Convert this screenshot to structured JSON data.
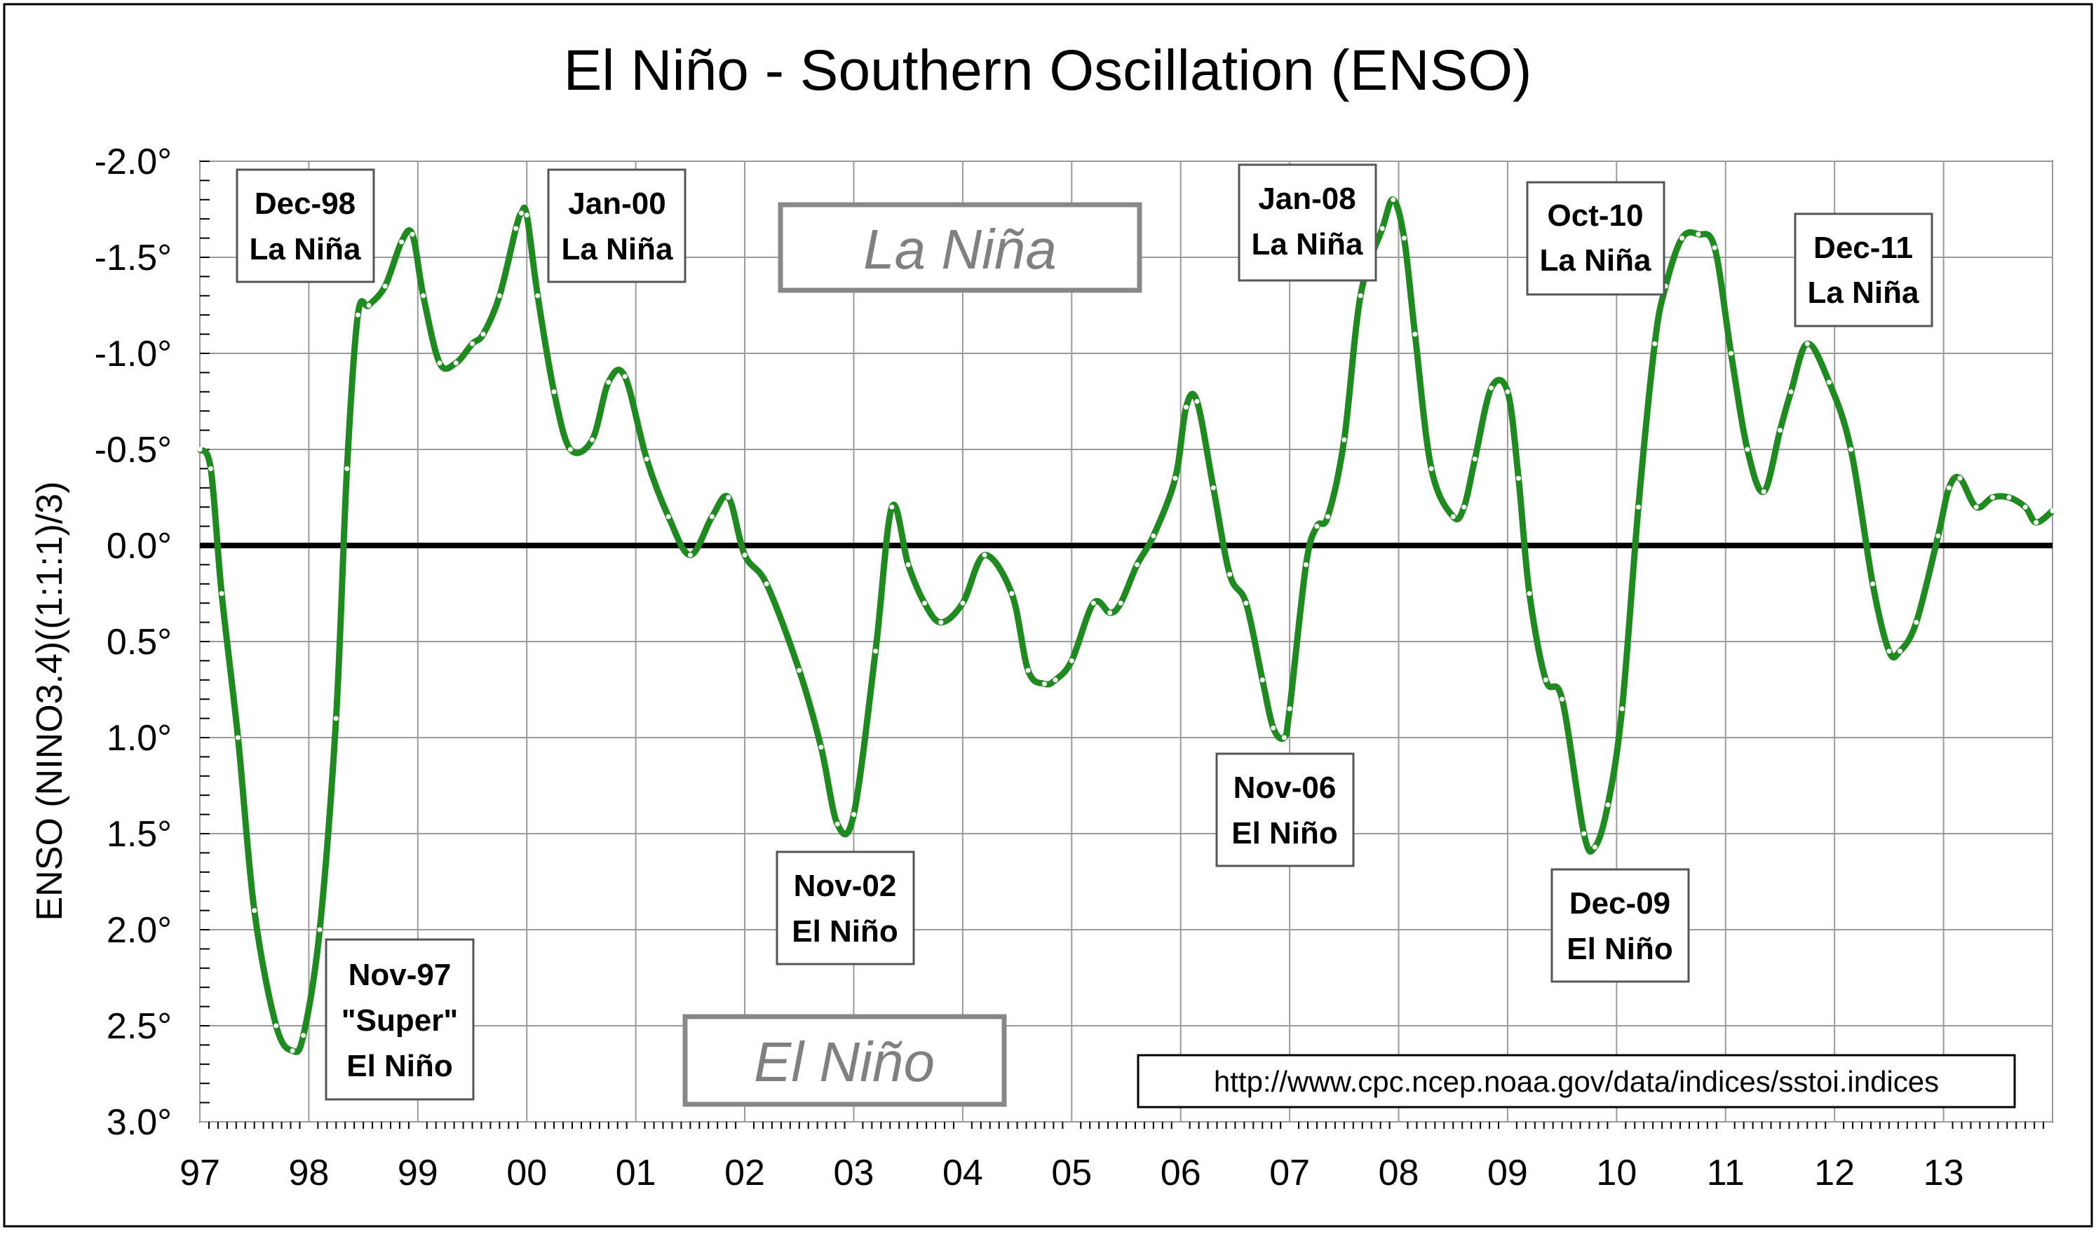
{
  "chart_data": {
    "type": "line",
    "title": "El Niño - Southern Oscillation (ENSO)",
    "ylabel": "ENSO (NINO3.4)((1:1:1)/3)",
    "xlabel": "",
    "xlim": [
      1997,
      2014
    ],
    "ylim": [
      -2.0,
      3.0
    ],
    "y_axis_inverted": true,
    "grid": true,
    "x_ticks": [
      1997,
      1998,
      1999,
      2000,
      2001,
      2002,
      2003,
      2004,
      2005,
      2006,
      2007,
      2008,
      2009,
      2010,
      2011,
      2012,
      2013
    ],
    "x_tick_labels": [
      "97",
      "98",
      "99",
      "00",
      "01",
      "02",
      "03",
      "04",
      "05",
      "06",
      "07",
      "08",
      "09",
      "10",
      "11",
      "12",
      "13"
    ],
    "y_ticks": [
      -2.0,
      -1.5,
      -1.0,
      -0.5,
      0.0,
      0.5,
      1.0,
      1.5,
      2.0,
      2.5,
      3.0
    ],
    "y_tick_labels": [
      "-2.0°",
      "-1.5°",
      "-1.0°",
      "-0.5°",
      "0.0°",
      "0.5°",
      "1.0°",
      "1.5°",
      "2.0°",
      "2.5°",
      "3.0°"
    ],
    "zero_line": 0.0,
    "series_color": "#1f8a1f",
    "series": [
      {
        "x": [
          1997.0,
          1997.1,
          1997.2,
          1997.35,
          1997.5,
          1997.7,
          1997.85,
          1997.95,
          1998.1,
          1998.25,
          1998.35,
          1998.45,
          1998.55,
          1998.7,
          1998.85,
          1998.95,
          1999.05,
          1999.2,
          1999.35,
          1999.5,
          1999.6,
          1999.75,
          1999.9,
          1999.95,
          2000.0,
          2000.1,
          2000.25,
          2000.4,
          2000.6,
          2000.75,
          2000.9,
          2001.1,
          2001.3,
          2001.5,
          2001.7,
          2001.85,
          2002.0,
          2002.2,
          2002.5,
          2002.7,
          2002.85,
          2003.0,
          2003.2,
          2003.35,
          2003.5,
          2003.65,
          2003.8,
          2004.0,
          2004.2,
          2004.45,
          2004.6,
          2004.75,
          2004.85,
          2005.0,
          2005.2,
          2005.35,
          2005.45,
          2005.6,
          2005.75,
          2005.95,
          2006.05,
          2006.15,
          2006.3,
          2006.45,
          2006.6,
          2006.75,
          2006.85,
          2006.95,
          2007.0,
          2007.15,
          2007.25,
          2007.35,
          2007.5,
          2007.65,
          2007.85,
          2007.95,
          2008.05,
          2008.15,
          2008.3,
          2008.5,
          2008.6,
          2008.7,
          2008.85,
          2009.0,
          2009.1,
          2009.2,
          2009.35,
          2009.5,
          2009.7,
          2009.8,
          2009.92,
          2010.05,
          2010.2,
          2010.35,
          2010.45,
          2010.6,
          2010.75,
          2010.9,
          2011.05,
          2011.2,
          2011.35,
          2011.5,
          2011.6,
          2011.75,
          2011.95,
          2012.15,
          2012.35,
          2012.5,
          2012.6,
          2012.75,
          2012.95,
          2013.05,
          2013.15,
          2013.3,
          2013.45,
          2013.6,
          2013.75,
          2013.85,
          2014.0
        ],
        "y": [
          -0.5,
          -0.4,
          0.25,
          1.0,
          1.9,
          2.5,
          2.63,
          2.55,
          2.0,
          0.9,
          -0.4,
          -1.2,
          -1.25,
          -1.35,
          -1.58,
          -1.62,
          -1.3,
          -0.95,
          -0.95,
          -1.05,
          -1.1,
          -1.3,
          -1.65,
          -1.73,
          -1.72,
          -1.3,
          -0.8,
          -0.5,
          -0.55,
          -0.85,
          -0.88,
          -0.45,
          -0.15,
          0.05,
          -0.15,
          -0.25,
          0.05,
          0.2,
          0.65,
          1.05,
          1.45,
          1.4,
          0.55,
          -0.2,
          0.1,
          0.3,
          0.4,
          0.3,
          0.05,
          0.25,
          0.65,
          0.72,
          0.7,
          0.6,
          0.3,
          0.35,
          0.3,
          0.1,
          -0.05,
          -0.35,
          -0.72,
          -0.75,
          -0.3,
          0.15,
          0.3,
          0.7,
          0.95,
          1.0,
          0.85,
          0.1,
          -0.1,
          -0.15,
          -0.55,
          -1.3,
          -1.65,
          -1.8,
          -1.6,
          -1.1,
          -0.4,
          -0.15,
          -0.2,
          -0.45,
          -0.82,
          -0.8,
          -0.35,
          0.25,
          0.7,
          0.8,
          1.5,
          1.57,
          1.35,
          0.85,
          -0.2,
          -1.05,
          -1.35,
          -1.6,
          -1.62,
          -1.55,
          -1.0,
          -0.5,
          -0.28,
          -0.6,
          -0.8,
          -1.05,
          -0.85,
          -0.5,
          0.2,
          0.55,
          0.55,
          0.4,
          -0.05,
          -0.3,
          -0.35,
          -0.2,
          -0.25,
          -0.25,
          -0.2,
          -0.12,
          -0.18
        ]
      }
    ],
    "annotations": [
      {
        "lines": [
          "Dec-98",
          "La Niña"
        ]
      },
      {
        "lines": [
          "Jan-00",
          "La Niña"
        ]
      },
      {
        "lines": [
          "Jan-08",
          "La Niña"
        ]
      },
      {
        "lines": [
          "Oct-10",
          "La Niña"
        ]
      },
      {
        "lines": [
          "Dec-11",
          "La Niña"
        ]
      },
      {
        "lines": [
          "Nov-97",
          "\"Super\"",
          "El Niño"
        ]
      },
      {
        "lines": [
          "Nov-02",
          "El Niño"
        ]
      },
      {
        "lines": [
          "Nov-06",
          "El Niño"
        ]
      },
      {
        "lines": [
          "Dec-09",
          "El Niño"
        ]
      }
    ],
    "region_labels": {
      "la_nina": "La Niña",
      "el_nino": "El Niño"
    },
    "source": "http://www.cpc.ncep.noaa.gov/data/indices/sstoi.indices"
  }
}
